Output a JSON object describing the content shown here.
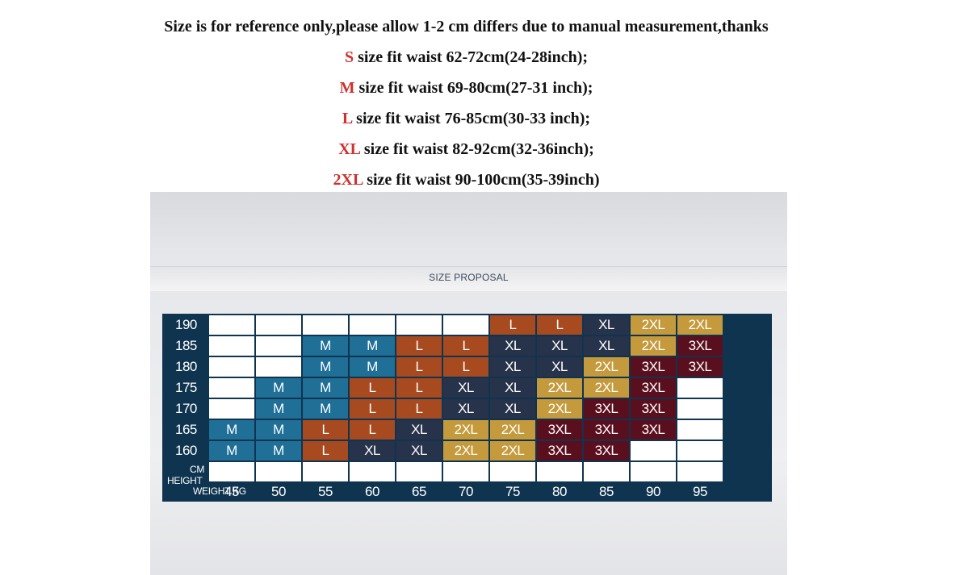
{
  "notes": {
    "intro": "Size is for reference only,please allow 1-2 cm differs due to manual measurement,thanks",
    "sizes": [
      {
        "size": "S",
        "text": " size fit waist 62-72cm(24-28inch);"
      },
      {
        "size": "M",
        "text": " size fit waist 69-80cm(27-31 inch);"
      },
      {
        "size": "L",
        "text": " size fit waist 76-85cm(30-33 inch);"
      },
      {
        "size": "XL",
        "text": " size fit waist 82-92cm(32-36inch);"
      },
      {
        "size": "2XL",
        "text": " size fit waist 90-100cm(35-39inch)"
      }
    ]
  },
  "panel": {
    "title": "SIZE PROPOSAL",
    "height_unit": "CM",
    "height_label": "HEIGHT",
    "weight_label": "WEIGHT KG"
  },
  "colors": {
    "M": "#1f6f97",
    "L": "#a84a20",
    "XL": "#27334a",
    "2XL": "#c49a3c",
    "3XL": "#5a0f1e",
    "empty": "#ffffff",
    "frame": "#0f3450",
    "highlight_size": "#d0312d"
  },
  "chart_data": {
    "type": "table",
    "title": "SIZE PROPOSAL",
    "xlabel": "WEIGHT KG",
    "ylabel": "CM HEIGHT",
    "weights": [
      "45",
      "50",
      "55",
      "60",
      "65",
      "70",
      "75",
      "80",
      "85",
      "90",
      "95"
    ],
    "heights": [
      "190",
      "185",
      "180",
      "175",
      "170",
      "165",
      "160"
    ],
    "sizes": [
      [
        "",
        "",
        "",
        "",
        "",
        "",
        "L",
        "L",
        "XL",
        "2XL",
        "2XL"
      ],
      [
        "",
        "",
        "M",
        "M",
        "L",
        "L",
        "XL",
        "XL",
        "XL",
        "2XL",
        "3XL"
      ],
      [
        "",
        "",
        "M",
        "M",
        "L",
        "L",
        "XL",
        "XL",
        "2XL",
        "3XL",
        "3XL"
      ],
      [
        "",
        "M",
        "M",
        "L",
        "L",
        "XL",
        "XL",
        "2XL",
        "2XL",
        "3XL",
        ""
      ],
      [
        "",
        "M",
        "M",
        "L",
        "L",
        "XL",
        "XL",
        "2XL",
        "3XL",
        "3XL",
        ""
      ],
      [
        "M",
        "M",
        "L",
        "L",
        "XL",
        "2XL",
        "2XL",
        "3XL",
        "3XL",
        "3XL",
        ""
      ],
      [
        "M",
        "M",
        "L",
        "XL",
        "XL",
        "2XL",
        "2XL",
        "3XL",
        "3XL",
        "",
        ""
      ]
    ]
  }
}
